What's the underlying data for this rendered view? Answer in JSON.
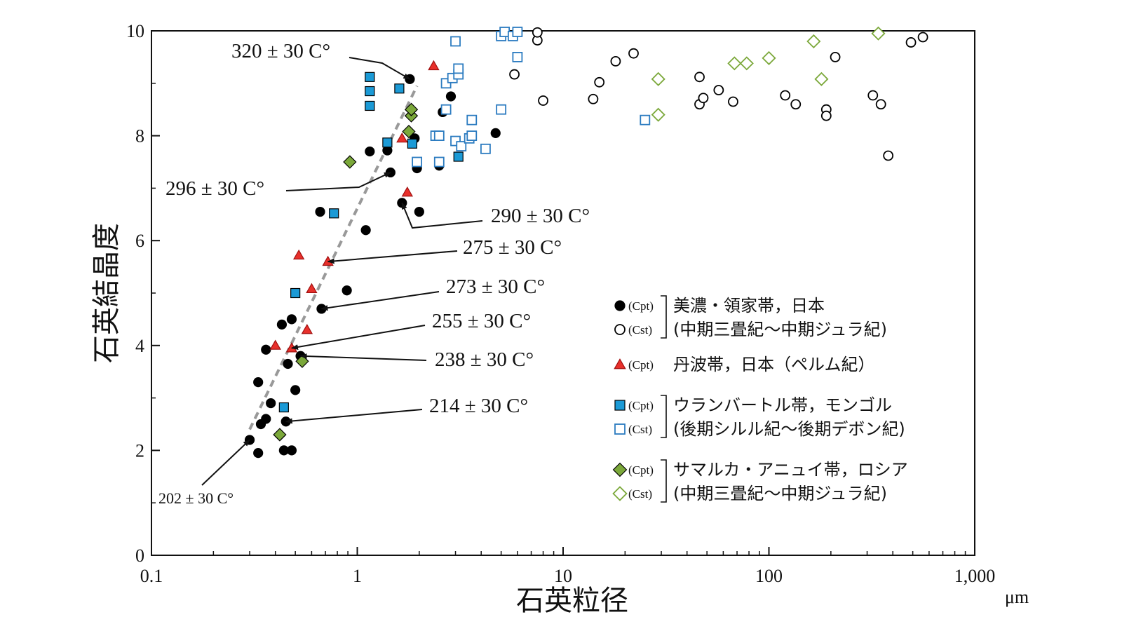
{
  "chart_data": {
    "type": "scatter",
    "title": "",
    "xlabel": "石英粒径",
    "xunit": "μm",
    "ylabel": "石英結晶度",
    "xscale": "log",
    "xlim": [
      0.1,
      1000
    ],
    "ylim": [
      0,
      10
    ],
    "x_ticks": [
      {
        "value": 0.1,
        "label": "0.1"
      },
      {
        "value": 1,
        "label": "1"
      },
      {
        "value": 10,
        "label": "10"
      },
      {
        "value": 100,
        "label": "100"
      },
      {
        "value": 1000,
        "label": "1,000"
      }
    ],
    "y_ticks": [
      {
        "value": 0,
        "label": "0"
      },
      {
        "value": 2,
        "label": "2"
      },
      {
        "value": 4,
        "label": "4"
      },
      {
        "value": 6,
        "label": "6"
      },
      {
        "value": 8,
        "label": "8"
      },
      {
        "value": 10,
        "label": "10"
      }
    ],
    "grid": false,
    "legend_placement": "bottom-right",
    "trend_line": {
      "style": "dashed",
      "color": "#999999",
      "points": [
        [
          0.3,
          2.4
        ],
        [
          1.95,
          8.95
        ]
      ]
    },
    "legend_groups": [
      {
        "entries": [
          {
            "tag": "(Cpt)",
            "symbol": "circle",
            "filled": true,
            "color": "#000000"
          },
          {
            "tag": "(Cst)",
            "symbol": "circle",
            "filled": false,
            "color": "#000000"
          }
        ],
        "lines": [
          "美濃・領家帯，日本",
          "(中期三畳紀～中期ジュラ紀)"
        ]
      },
      {
        "entries": [
          {
            "tag": "(Cpt)",
            "symbol": "triangle",
            "filled": true,
            "color": "#e8302b"
          }
        ],
        "lines": [
          "丹波帯，日本（ペルム紀）"
        ]
      },
      {
        "entries": [
          {
            "tag": "(Cpt)",
            "symbol": "square",
            "filled": true,
            "color": "#1b9ad6"
          },
          {
            "tag": "(Cst)",
            "symbol": "square",
            "filled": false,
            "color": "#2b7bc0"
          }
        ],
        "lines": [
          "ウランバートル帯，モンゴル",
          "(後期シルル紀～後期デボン紀)"
        ]
      },
      {
        "entries": [
          {
            "tag": "(Cpt)",
            "symbol": "diamond",
            "filled": true,
            "color": "#7ba83a"
          },
          {
            "tag": "(Cst)",
            "symbol": "diamond",
            "filled": false,
            "color": "#7ba83a"
          }
        ],
        "lines": [
          "サマルカ・アニュイ帯，ロシア",
          "(中期三畳紀～中期ジュラ紀)"
        ]
      }
    ],
    "series": [
      {
        "symbol": "circle",
        "filled": true,
        "color": "#000000",
        "points": [
          [
            0.3,
            2.2
          ],
          [
            0.33,
            1.95
          ],
          [
            0.34,
            2.5
          ],
          [
            0.33,
            3.3
          ],
          [
            0.36,
            2.6
          ],
          [
            0.36,
            3.92
          ],
          [
            0.38,
            2.9
          ],
          [
            0.43,
            4.4
          ],
          [
            0.44,
            2.0
          ],
          [
            0.45,
            2.55
          ],
          [
            0.46,
            3.65
          ],
          [
            0.48,
            2.0
          ],
          [
            0.48,
            4.5
          ],
          [
            0.5,
            3.15
          ],
          [
            0.53,
            3.8
          ],
          [
            0.67,
            4.7
          ],
          [
            0.66,
            6.55
          ],
          [
            0.89,
            5.05
          ],
          [
            1.1,
            6.2
          ],
          [
            1.15,
            7.7
          ],
          [
            1.4,
            7.72
          ],
          [
            1.45,
            7.3
          ],
          [
            1.65,
            6.72
          ],
          [
            1.8,
            9.08
          ],
          [
            1.9,
            7.95
          ],
          [
            1.95,
            7.38
          ],
          [
            2.0,
            6.55
          ],
          [
            2.5,
            7.43
          ],
          [
            2.6,
            8.45
          ],
          [
            2.85,
            8.75
          ],
          [
            4.7,
            8.05
          ]
        ]
      },
      {
        "symbol": "circle",
        "filled": false,
        "color": "#000000",
        "points": [
          [
            5.8,
            9.17
          ],
          [
            7.5,
            9.82
          ],
          [
            7.5,
            9.97
          ],
          [
            8.0,
            8.67
          ],
          [
            14,
            8.7
          ],
          [
            15,
            9.02
          ],
          [
            18,
            9.42
          ],
          [
            22,
            9.57
          ],
          [
            46,
            9.12
          ],
          [
            46,
            8.6
          ],
          [
            48,
            8.72
          ],
          [
            57,
            8.87
          ],
          [
            67,
            8.65
          ],
          [
            120,
            8.77
          ],
          [
            135,
            8.6
          ],
          [
            190,
            8.5
          ],
          [
            190,
            8.38
          ],
          [
            210,
            9.5
          ],
          [
            320,
            8.77
          ],
          [
            350,
            8.6
          ],
          [
            380,
            7.62
          ],
          [
            490,
            9.78
          ],
          [
            560,
            9.88
          ]
        ]
      },
      {
        "symbol": "triangle",
        "filled": true,
        "color": "#e8302b",
        "points": [
          [
            0.4,
            4.0
          ],
          [
            0.48,
            3.95
          ],
          [
            0.52,
            5.72
          ],
          [
            0.57,
            4.3
          ],
          [
            0.6,
            5.08
          ],
          [
            0.72,
            5.6
          ],
          [
            1.65,
            7.95
          ],
          [
            1.75,
            6.92
          ],
          [
            2.35,
            9.33
          ]
        ]
      },
      {
        "symbol": "square",
        "filled": true,
        "color": "#1b9ad6",
        "points": [
          [
            0.44,
            2.82
          ],
          [
            0.5,
            5.0
          ],
          [
            0.77,
            6.52
          ],
          [
            1.15,
            9.12
          ],
          [
            1.15,
            8.85
          ],
          [
            1.15,
            8.57
          ],
          [
            1.4,
            7.87
          ],
          [
            1.6,
            8.9
          ],
          [
            1.85,
            7.85
          ],
          [
            3.1,
            7.6
          ]
        ]
      },
      {
        "symbol": "square",
        "filled": false,
        "color": "#2b7bc0",
        "points": [
          [
            1.95,
            7.5
          ],
          [
            2.4,
            8.0
          ],
          [
            2.5,
            8.0
          ],
          [
            2.5,
            7.5
          ],
          [
            2.7,
            8.5
          ],
          [
            2.7,
            9.0
          ],
          [
            2.9,
            9.1
          ],
          [
            3.0,
            7.9
          ],
          [
            3.0,
            9.8
          ],
          [
            3.1,
            9.17
          ],
          [
            3.1,
            9.28
          ],
          [
            3.2,
            7.8
          ],
          [
            3.5,
            7.95
          ],
          [
            3.6,
            8.3
          ],
          [
            3.6,
            8.0
          ],
          [
            4.2,
            7.75
          ],
          [
            5.0,
            9.9
          ],
          [
            5.0,
            8.5
          ],
          [
            5.2,
            9.98
          ],
          [
            5.7,
            9.9
          ],
          [
            6.0,
            9.98
          ],
          [
            6.0,
            9.5
          ],
          [
            25,
            8.3
          ]
        ]
      },
      {
        "symbol": "diamond",
        "filled": true,
        "color": "#7ba83a",
        "points": [
          [
            0.42,
            2.3
          ],
          [
            0.54,
            3.7
          ],
          [
            0.92,
            7.5
          ],
          [
            1.78,
            8.08
          ],
          [
            1.83,
            8.38
          ],
          [
            1.83,
            8.5
          ]
        ]
      },
      {
        "symbol": "diamond",
        "filled": false,
        "color": "#7ba83a",
        "points": [
          [
            29,
            9.08
          ],
          [
            29,
            8.4
          ],
          [
            68,
            9.38
          ],
          [
            78,
            9.38
          ],
          [
            100,
            9.48
          ],
          [
            165,
            9.8
          ],
          [
            180,
            9.08
          ],
          [
            340,
            9.95
          ]
        ]
      }
    ],
    "annotations": [
      {
        "text": "320 ± 30 C°",
        "target": [
          1.8,
          9.08
        ],
        "size": "large"
      },
      {
        "text": "296 ± 30 C°",
        "target": [
          1.45,
          7.3
        ],
        "size": "large"
      },
      {
        "text": "290 ± 30 C°",
        "target": [
          1.65,
          6.72
        ],
        "size": "large"
      },
      {
        "text": "275 ± 30 C°",
        "target": [
          0.72,
          5.6
        ],
        "size": "large"
      },
      {
        "text": "273 ± 30 C°",
        "target": [
          0.67,
          4.7
        ],
        "size": "large"
      },
      {
        "text": "255 ± 30 C°",
        "target": [
          0.48,
          3.95
        ],
        "size": "large"
      },
      {
        "text": "238 ± 30 C°",
        "target": [
          0.53,
          3.8
        ],
        "size": "large"
      },
      {
        "text": "214 ± 30 C°",
        "target": [
          0.45,
          2.55
        ],
        "size": "large"
      },
      {
        "text": "202 ± 30 C°",
        "target": [
          0.3,
          2.2
        ],
        "size": "small"
      }
    ]
  }
}
